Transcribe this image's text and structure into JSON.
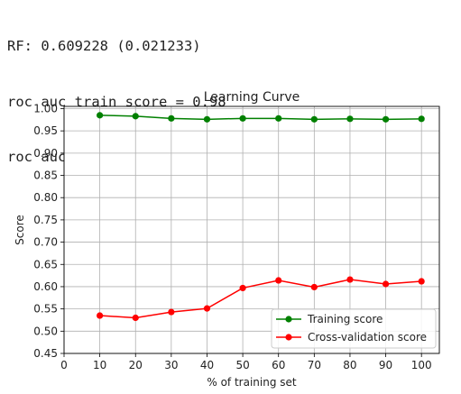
{
  "console": {
    "lines": [
      "RF: 0.609228 (0.021233)",
      "roc auc train score = 0.98",
      "roc auc validation score = 0.61"
    ]
  },
  "chart_data": {
    "type": "line",
    "title": "Learning Curve",
    "xlabel": "% of training set",
    "ylabel": "Score",
    "xlim": [
      0,
      105
    ],
    "ylim": [
      0.45,
      1.005
    ],
    "xticks": [
      0,
      10,
      20,
      30,
      40,
      50,
      60,
      70,
      80,
      90,
      100
    ],
    "yticks": [
      0.45,
      0.5,
      0.55,
      0.6,
      0.65,
      0.7,
      0.75,
      0.8,
      0.85,
      0.9,
      0.95,
      1.0
    ],
    "grid": true,
    "legend_position": "lower-right",
    "x": [
      10,
      20,
      30,
      40,
      50,
      60,
      70,
      80,
      90,
      100
    ],
    "series": [
      {
        "name": "Training score",
        "color": "#008000",
        "values": [
          0.985,
          0.983,
          0.978,
          0.976,
          0.978,
          0.978,
          0.976,
          0.977,
          0.976,
          0.977
        ]
      },
      {
        "name": "Cross-validation score",
        "color": "#ff0000",
        "values": [
          0.535,
          0.53,
          0.543,
          0.551,
          0.597,
          0.614,
          0.599,
          0.616,
          0.606,
          0.612
        ]
      }
    ]
  }
}
